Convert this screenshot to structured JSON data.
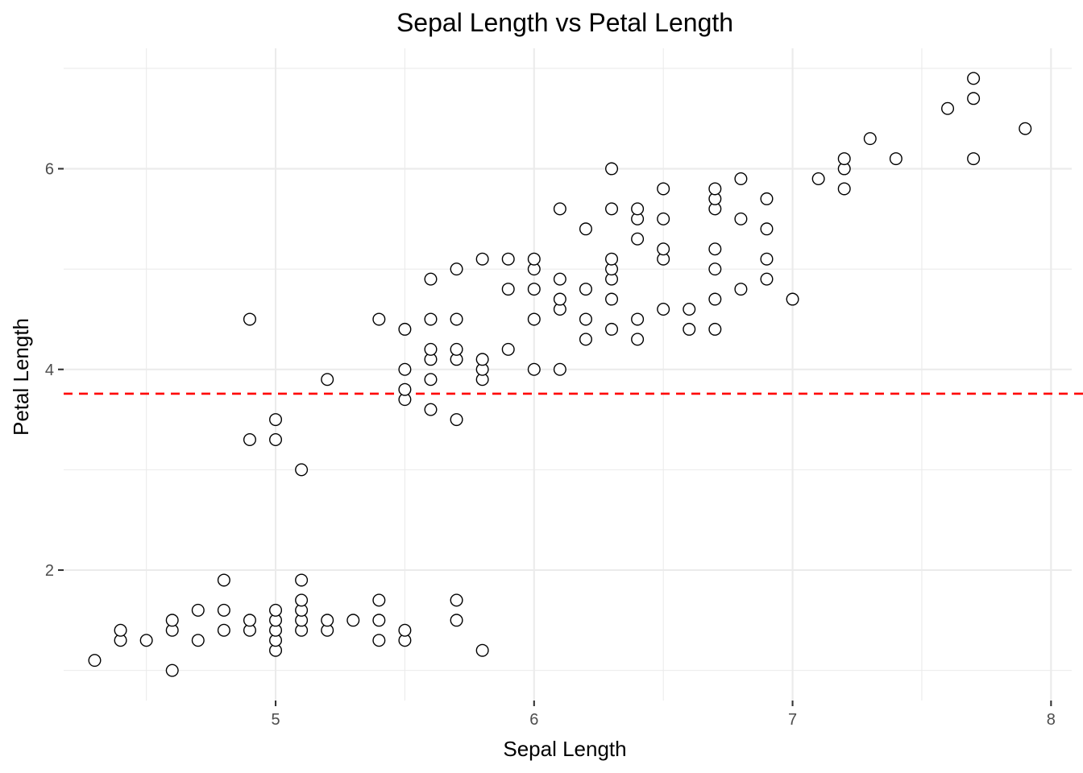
{
  "chart_data": {
    "type": "scatter",
    "title": "Sepal Length vs Petal Length",
    "xlabel": "Sepal Length",
    "ylabel": "Petal Length",
    "xlim": [
      4.18,
      8.08
    ],
    "ylim": [
      0.7,
      7.2
    ],
    "x_ticks": [
      5,
      6,
      7,
      8
    ],
    "y_ticks": [
      2,
      4,
      6
    ],
    "x_minor": [
      4.5,
      5.5,
      6.5,
      7.5
    ],
    "y_minor": [
      1,
      3,
      5,
      7
    ],
    "grid": true,
    "hline": {
      "y": 3.758,
      "color": "#ff0000",
      "style": "dashed"
    },
    "point_color": "#000000",
    "points": [
      [
        4.3,
        1.1
      ],
      [
        4.4,
        1.3
      ],
      [
        4.4,
        1.4
      ],
      [
        4.5,
        1.3
      ],
      [
        4.6,
        1.0
      ],
      [
        4.6,
        1.4
      ],
      [
        4.6,
        1.5
      ],
      [
        4.7,
        1.3
      ],
      [
        4.7,
        1.6
      ],
      [
        4.8,
        1.4
      ],
      [
        4.8,
        1.6
      ],
      [
        4.8,
        1.9
      ],
      [
        4.9,
        1.4
      ],
      [
        4.9,
        1.5
      ],
      [
        4.9,
        3.3
      ],
      [
        4.9,
        4.5
      ],
      [
        5.0,
        1.2
      ],
      [
        5.0,
        1.3
      ],
      [
        5.0,
        1.4
      ],
      [
        5.0,
        1.5
      ],
      [
        5.0,
        1.6
      ],
      [
        5.0,
        3.3
      ],
      [
        5.0,
        3.5
      ],
      [
        5.1,
        1.4
      ],
      [
        5.1,
        1.5
      ],
      [
        5.1,
        1.6
      ],
      [
        5.1,
        1.7
      ],
      [
        5.1,
        1.9
      ],
      [
        5.1,
        3.0
      ],
      [
        5.2,
        1.4
      ],
      [
        5.2,
        1.5
      ],
      [
        5.2,
        3.9
      ],
      [
        5.3,
        1.5
      ],
      [
        5.4,
        1.3
      ],
      [
        5.4,
        1.5
      ],
      [
        5.4,
        1.7
      ],
      [
        5.4,
        4.5
      ],
      [
        5.5,
        1.3
      ],
      [
        5.5,
        1.4
      ],
      [
        5.5,
        3.7
      ],
      [
        5.5,
        3.8
      ],
      [
        5.5,
        4.0
      ],
      [
        5.5,
        4.4
      ],
      [
        5.6,
        3.6
      ],
      [
        5.6,
        3.9
      ],
      [
        5.6,
        4.1
      ],
      [
        5.6,
        4.2
      ],
      [
        5.6,
        4.5
      ],
      [
        5.6,
        4.9
      ],
      [
        5.7,
        1.5
      ],
      [
        5.7,
        1.7
      ],
      [
        5.7,
        3.5
      ],
      [
        5.7,
        4.1
      ],
      [
        5.7,
        4.2
      ],
      [
        5.7,
        4.5
      ],
      [
        5.7,
        5.0
      ],
      [
        5.8,
        1.2
      ],
      [
        5.8,
        3.9
      ],
      [
        5.8,
        4.0
      ],
      [
        5.8,
        4.1
      ],
      [
        5.8,
        5.1
      ],
      [
        5.9,
        4.2
      ],
      [
        5.9,
        4.8
      ],
      [
        5.9,
        5.1
      ],
      [
        6.0,
        4.0
      ],
      [
        6.0,
        4.5
      ],
      [
        6.0,
        4.8
      ],
      [
        6.0,
        5.0
      ],
      [
        6.0,
        5.1
      ],
      [
        6.1,
        4.0
      ],
      [
        6.1,
        4.6
      ],
      [
        6.1,
        4.7
      ],
      [
        6.1,
        4.9
      ],
      [
        6.1,
        5.6
      ],
      [
        6.2,
        4.3
      ],
      [
        6.2,
        4.5
      ],
      [
        6.2,
        4.8
      ],
      [
        6.2,
        5.4
      ],
      [
        6.3,
        4.4
      ],
      [
        6.3,
        4.7
      ],
      [
        6.3,
        4.9
      ],
      [
        6.3,
        5.0
      ],
      [
        6.3,
        5.1
      ],
      [
        6.3,
        5.6
      ],
      [
        6.3,
        6.0
      ],
      [
        6.4,
        4.3
      ],
      [
        6.4,
        4.5
      ],
      [
        6.4,
        5.3
      ],
      [
        6.4,
        5.5
      ],
      [
        6.4,
        5.6
      ],
      [
        6.5,
        4.6
      ],
      [
        6.5,
        5.1
      ],
      [
        6.5,
        5.2
      ],
      [
        6.5,
        5.5
      ],
      [
        6.5,
        5.8
      ],
      [
        6.6,
        4.4
      ],
      [
        6.6,
        4.6
      ],
      [
        6.7,
        4.4
      ],
      [
        6.7,
        4.7
      ],
      [
        6.7,
        5.0
      ],
      [
        6.7,
        5.2
      ],
      [
        6.7,
        5.6
      ],
      [
        6.7,
        5.7
      ],
      [
        6.7,
        5.8
      ],
      [
        6.8,
        4.8
      ],
      [
        6.8,
        5.5
      ],
      [
        6.8,
        5.9
      ],
      [
        6.9,
        4.9
      ],
      [
        6.9,
        5.1
      ],
      [
        6.9,
        5.4
      ],
      [
        6.9,
        5.7
      ],
      [
        7.0,
        4.7
      ],
      [
        7.1,
        5.9
      ],
      [
        7.2,
        5.8
      ],
      [
        7.2,
        6.0
      ],
      [
        7.2,
        6.1
      ],
      [
        7.3,
        6.3
      ],
      [
        7.4,
        6.1
      ],
      [
        7.6,
        6.6
      ],
      [
        7.7,
        6.1
      ],
      [
        7.7,
        6.7
      ],
      [
        7.7,
        6.9
      ],
      [
        7.9,
        6.4
      ]
    ]
  }
}
